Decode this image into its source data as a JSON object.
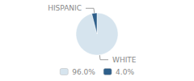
{
  "chart_data": {
    "type": "pie",
    "categories": [
      "WHITE",
      "HISPANIC"
    ],
    "values": [
      96.0,
      4.0
    ],
    "value_labels": [
      "96.0%",
      "4.0%"
    ],
    "colors": [
      "#d6e4ee",
      "#2e5f8a"
    ],
    "legend": "bottom"
  }
}
